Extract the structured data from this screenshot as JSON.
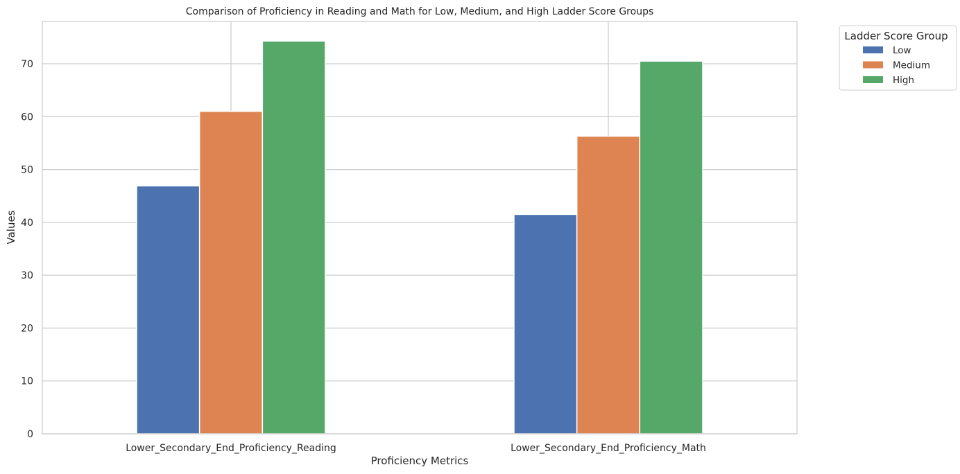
{
  "chart_data": {
    "type": "bar",
    "title": "Comparison of Proficiency in Reading and Math for Low, Medium, and High Ladder Score Groups",
    "xlabel": "Proficiency Metrics",
    "ylabel": "Values",
    "categories": [
      "Lower_Secondary_End_Proficiency_Reading",
      "Lower_Secondary_End_Proficiency_Math"
    ],
    "series": [
      {
        "name": "Low",
        "color": "#4c72b0",
        "values": [
          46.9,
          41.5
        ]
      },
      {
        "name": "Medium",
        "color": "#dd8452",
        "values": [
          61.0,
          56.3
        ]
      },
      {
        "name": "High",
        "color": "#55a868",
        "values": [
          74.3,
          70.5
        ]
      }
    ],
    "ylim": [
      0,
      78
    ],
    "yticks": [
      0,
      10,
      20,
      30,
      40,
      50,
      60,
      70
    ],
    "grid": true,
    "legend": {
      "title": "Ladder Score Group",
      "placement": "outside top-right"
    }
  }
}
